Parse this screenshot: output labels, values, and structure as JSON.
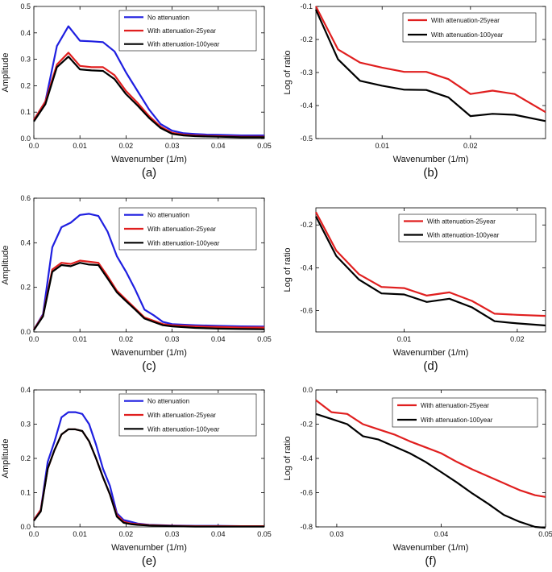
{
  "chart_data": [
    {
      "type": "line",
      "panel_label": "(a)",
      "xlabel": "Wavenumber (1/m)",
      "ylabel": "Amplitude",
      "xlim": [
        0,
        0.05
      ],
      "ylim": [
        0,
        0.5
      ],
      "xticks": [
        "0.0",
        "0.01",
        "0.02",
        "0.03",
        "0.04",
        "0.05"
      ],
      "yticks": [
        "0.0",
        "0.1",
        "0.2",
        "0.3",
        "0.4",
        "0.5"
      ],
      "legend_position": "top-right",
      "series": [
        {
          "name": "No attenuation",
          "color": "#1f1fe0",
          "x": [
            0.0,
            0.0025,
            0.005,
            0.0075,
            0.01,
            0.0125,
            0.015,
            0.0175,
            0.02,
            0.0225,
            0.025,
            0.0275,
            0.03,
            0.0325,
            0.035,
            0.0375,
            0.04,
            0.0425,
            0.045,
            0.0475,
            0.05
          ],
          "y": [
            0.07,
            0.14,
            0.35,
            0.425,
            0.37,
            0.368,
            0.365,
            0.33,
            0.25,
            0.18,
            0.11,
            0.055,
            0.03,
            0.02,
            0.017,
            0.015,
            0.014,
            0.013,
            0.012,
            0.012,
            0.012
          ]
        },
        {
          "name": "With attenuation-25year",
          "color": "#e01f1f",
          "x": [
            0.0,
            0.0025,
            0.005,
            0.0075,
            0.01,
            0.0125,
            0.015,
            0.0175,
            0.02,
            0.0225,
            0.025,
            0.0275,
            0.03,
            0.0325,
            0.035,
            0.0375,
            0.04,
            0.0425,
            0.045,
            0.0475,
            0.05
          ],
          "y": [
            0.07,
            0.14,
            0.28,
            0.325,
            0.275,
            0.27,
            0.27,
            0.24,
            0.18,
            0.135,
            0.085,
            0.045,
            0.022,
            0.015,
            0.012,
            0.01,
            0.009,
            0.008,
            0.007,
            0.007,
            0.007
          ]
        },
        {
          "name": "With attenuation-100year",
          "color": "#000000",
          "x": [
            0.0,
            0.0025,
            0.005,
            0.0075,
            0.01,
            0.0125,
            0.015,
            0.0175,
            0.02,
            0.0225,
            0.025,
            0.0275,
            0.03,
            0.0325,
            0.035,
            0.0375,
            0.04,
            0.0425,
            0.045,
            0.0475,
            0.05
          ],
          "y": [
            0.065,
            0.13,
            0.27,
            0.31,
            0.262,
            0.258,
            0.256,
            0.225,
            0.168,
            0.125,
            0.078,
            0.04,
            0.018,
            0.012,
            0.009,
            0.008,
            0.007,
            0.006,
            0.005,
            0.005,
            0.005
          ]
        }
      ]
    },
    {
      "type": "line",
      "panel_label": "(b)",
      "xlabel": "Wavenumber (1/m)",
      "ylabel": "Log  of  ratio",
      "xlim": [
        0.0025,
        0.0285
      ],
      "ylim": [
        -0.5,
        -0.1
      ],
      "xticks": [
        "0.01",
        "0.02"
      ],
      "xtick_values": [
        0.01,
        0.02
      ],
      "yticks": [
        "-0.1",
        "-0.2",
        "-0.3",
        "-0.4",
        "-0.5"
      ],
      "legend_position": "top-right",
      "series": [
        {
          "name": "With attenuation-25year",
          "color": "#e01f1f",
          "x": [
            0.0025,
            0.005,
            0.0075,
            0.01,
            0.0125,
            0.015,
            0.0175,
            0.02,
            0.0225,
            0.025,
            0.0285
          ],
          "y": [
            -0.1,
            -0.23,
            -0.27,
            -0.285,
            -0.298,
            -0.298,
            -0.32,
            -0.365,
            -0.355,
            -0.365,
            -0.42
          ]
        },
        {
          "name": "With attenuation-100year",
          "color": "#000000",
          "x": [
            0.0025,
            0.005,
            0.0075,
            0.01,
            0.0125,
            0.015,
            0.0175,
            0.02,
            0.0225,
            0.025,
            0.0285
          ],
          "y": [
            -0.11,
            -0.26,
            -0.325,
            -0.34,
            -0.352,
            -0.353,
            -0.375,
            -0.432,
            -0.425,
            -0.428,
            -0.447
          ]
        }
      ]
    },
    {
      "type": "line",
      "panel_label": "(c)",
      "xlabel": "Wavenumber (1/m)",
      "ylabel": "Amplitude",
      "xlim": [
        0,
        0.05
      ],
      "ylim": [
        0,
        0.6
      ],
      "xticks": [
        "0.0",
        "0.01",
        "0.02",
        "0.03",
        "0.04",
        "0.05"
      ],
      "yticks": [
        "0.0",
        "0.2",
        "0.4",
        "0.6"
      ],
      "ytick_values": [
        0,
        0.2,
        0.4,
        0.6
      ],
      "legend_position": "top-right",
      "series": [
        {
          "name": "No attenuation",
          "color": "#1f1fe0",
          "x": [
            0.0,
            0.002,
            0.004,
            0.006,
            0.008,
            0.01,
            0.012,
            0.014,
            0.016,
            0.018,
            0.02,
            0.022,
            0.024,
            0.026,
            0.028,
            0.03,
            0.035,
            0.04,
            0.045,
            0.05
          ],
          "y": [
            0.01,
            0.08,
            0.38,
            0.47,
            0.49,
            0.525,
            0.53,
            0.52,
            0.45,
            0.34,
            0.27,
            0.19,
            0.1,
            0.075,
            0.045,
            0.035,
            0.03,
            0.027,
            0.025,
            0.024
          ]
        },
        {
          "name": "With attenuation-25year",
          "color": "#e01f1f",
          "x": [
            0.0,
            0.002,
            0.004,
            0.006,
            0.008,
            0.01,
            0.012,
            0.014,
            0.016,
            0.018,
            0.02,
            0.022,
            0.024,
            0.026,
            0.028,
            0.03,
            0.035,
            0.04,
            0.045,
            0.05
          ],
          "y": [
            0.01,
            0.075,
            0.28,
            0.31,
            0.305,
            0.32,
            0.315,
            0.31,
            0.25,
            0.185,
            0.145,
            0.105,
            0.065,
            0.05,
            0.035,
            0.03,
            0.025,
            0.022,
            0.02,
            0.02
          ]
        },
        {
          "name": "With attenuation-100year",
          "color": "#000000",
          "x": [
            0.0,
            0.002,
            0.004,
            0.006,
            0.008,
            0.01,
            0.012,
            0.014,
            0.016,
            0.018,
            0.02,
            0.022,
            0.024,
            0.026,
            0.028,
            0.03,
            0.035,
            0.04,
            0.045,
            0.05
          ],
          "y": [
            0.008,
            0.07,
            0.27,
            0.3,
            0.295,
            0.31,
            0.302,
            0.3,
            0.24,
            0.178,
            0.138,
            0.1,
            0.06,
            0.045,
            0.03,
            0.025,
            0.018,
            0.015,
            0.013,
            0.012
          ]
        }
      ]
    },
    {
      "type": "line",
      "panel_label": "(d)",
      "xlabel": "Wavenumber (1/m)",
      "ylabel": "Log  of  ratio",
      "xlim": [
        0.0022,
        0.0225
      ],
      "ylim": [
        -0.7,
        -0.12
      ],
      "xticks": [
        "0.01",
        "0.02"
      ],
      "xtick_values": [
        0.01,
        0.02
      ],
      "yticks": [
        "-0.2",
        "-0.4",
        "-0.6"
      ],
      "ytick_values": [
        -0.2,
        -0.4,
        -0.6
      ],
      "legend_position": "top-right",
      "series": [
        {
          "name": "With attenuation-25year",
          "color": "#e01f1f",
          "x": [
            0.0022,
            0.004,
            0.006,
            0.008,
            0.01,
            0.012,
            0.014,
            0.016,
            0.018,
            0.02,
            0.0225
          ],
          "y": [
            -0.14,
            -0.32,
            -0.43,
            -0.49,
            -0.495,
            -0.53,
            -0.515,
            -0.555,
            -0.615,
            -0.62,
            -0.625
          ]
        },
        {
          "name": "With attenuation-100year",
          "color": "#000000",
          "x": [
            0.0022,
            0.004,
            0.006,
            0.008,
            0.01,
            0.012,
            0.014,
            0.016,
            0.018,
            0.02,
            0.0225
          ],
          "y": [
            -0.16,
            -0.345,
            -0.455,
            -0.52,
            -0.525,
            -0.56,
            -0.545,
            -0.585,
            -0.65,
            -0.66,
            -0.67
          ]
        }
      ]
    },
    {
      "type": "line",
      "panel_label": "(e)",
      "xlabel": "Wavenumber (1/m)",
      "ylabel": "Amplitude",
      "xlim": [
        0,
        0.05
      ],
      "ylim": [
        0,
        0.4
      ],
      "xticks": [
        "0.0",
        "0.01",
        "0.02",
        "0.03",
        "0.04",
        "0.05"
      ],
      "yticks": [
        "0.0",
        "0.1",
        "0.2",
        "0.3",
        "0.4"
      ],
      "ytick_values": [
        0,
        0.1,
        0.2,
        0.3,
        0.4
      ],
      "legend_position": "top-right",
      "series": [
        {
          "name": "No attenuation",
          "color": "#1f1fe0",
          "x": [
            0.0,
            0.0015,
            0.003,
            0.0045,
            0.006,
            0.0075,
            0.009,
            0.0105,
            0.012,
            0.0135,
            0.015,
            0.0165,
            0.018,
            0.0195,
            0.021,
            0.0225,
            0.025,
            0.03,
            0.035,
            0.04,
            0.045,
            0.05
          ],
          "y": [
            0.02,
            0.05,
            0.19,
            0.25,
            0.32,
            0.335,
            0.335,
            0.33,
            0.3,
            0.24,
            0.17,
            0.12,
            0.04,
            0.02,
            0.015,
            0.01,
            0.006,
            0.004,
            0.003,
            0.003,
            0.002,
            0.002
          ]
        },
        {
          "name": "With attenuation-25year",
          "color": "#e01f1f",
          "x": [
            0.0,
            0.0015,
            0.003,
            0.0045,
            0.006,
            0.0075,
            0.009,
            0.0105,
            0.012,
            0.0135,
            0.015,
            0.0165,
            0.018,
            0.0195,
            0.021,
            0.0225,
            0.025,
            0.03,
            0.035,
            0.04,
            0.045,
            0.05
          ],
          "y": [
            0.02,
            0.05,
            0.17,
            0.225,
            0.27,
            0.285,
            0.285,
            0.28,
            0.25,
            0.2,
            0.145,
            0.095,
            0.035,
            0.015,
            0.01,
            0.008,
            0.005,
            0.003,
            0.002,
            0.002,
            0.002,
            0.002
          ]
        },
        {
          "name": "With attenuation-100year",
          "color": "#000000",
          "x": [
            0.0,
            0.0015,
            0.003,
            0.0045,
            0.006,
            0.0075,
            0.009,
            0.0105,
            0.012,
            0.0135,
            0.015,
            0.0165,
            0.018,
            0.0195,
            0.021,
            0.0225,
            0.025,
            0.03,
            0.035,
            0.04,
            0.045,
            0.05
          ],
          "y": [
            0.018,
            0.045,
            0.17,
            0.225,
            0.27,
            0.285,
            0.285,
            0.28,
            0.25,
            0.2,
            0.145,
            0.095,
            0.03,
            0.012,
            0.008,
            0.006,
            0.004,
            0.002,
            0.001,
            0.001,
            0.001,
            0.001
          ]
        }
      ]
    },
    {
      "type": "line",
      "panel_label": "(f)",
      "xlabel": "Wavenumber (1/m)",
      "ylabel": "Log  of  ratio",
      "xlim": [
        0.028,
        0.05
      ],
      "ylim": [
        -0.8,
        0.0
      ],
      "xticks": [
        "0.03",
        "0.04",
        "0.05"
      ],
      "xtick_values": [
        0.03,
        0.04,
        0.05
      ],
      "yticks": [
        "0.0",
        "-0.2",
        "-0.4",
        "-0.6",
        "-0.8"
      ],
      "ytick_values": [
        0,
        -0.2,
        -0.4,
        -0.6,
        -0.8
      ],
      "legend_position": "top-right",
      "series": [
        {
          "name": "With attenuation-25year",
          "color": "#e01f1f",
          "x": [
            0.028,
            0.0295,
            0.031,
            0.0325,
            0.034,
            0.0355,
            0.037,
            0.0385,
            0.04,
            0.0415,
            0.043,
            0.0445,
            0.046,
            0.0475,
            0.049,
            0.05
          ],
          "y": [
            -0.06,
            -0.13,
            -0.14,
            -0.2,
            -0.23,
            -0.26,
            -0.3,
            -0.335,
            -0.37,
            -0.42,
            -0.465,
            -0.505,
            -0.545,
            -0.585,
            -0.615,
            -0.625
          ]
        },
        {
          "name": "With attenuation-100year",
          "color": "#000000",
          "x": [
            0.028,
            0.0295,
            0.031,
            0.0325,
            0.034,
            0.0355,
            0.037,
            0.0385,
            0.04,
            0.0415,
            0.043,
            0.0445,
            0.046,
            0.0475,
            0.049,
            0.05
          ],
          "y": [
            -0.14,
            -0.17,
            -0.2,
            -0.27,
            -0.29,
            -0.33,
            -0.37,
            -0.42,
            -0.48,
            -0.54,
            -0.605,
            -0.665,
            -0.73,
            -0.77,
            -0.8,
            -0.805
          ]
        }
      ]
    }
  ]
}
